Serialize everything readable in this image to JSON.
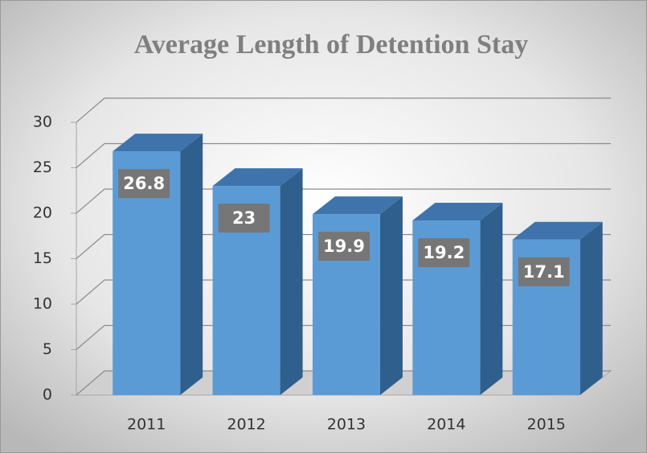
{
  "chart_data": {
    "type": "bar",
    "title": "Average Length of Detention Stay",
    "categories": [
      "2011",
      "2012",
      "2013",
      "2014",
      "2015"
    ],
    "values": [
      26.8,
      23,
      19.9,
      19.2,
      17.1
    ],
    "color": "#5b9bd5",
    "ylim": [
      0,
      30
    ],
    "yticks": [
      0,
      5,
      10,
      15,
      20,
      25,
      30
    ],
    "grid": true
  }
}
